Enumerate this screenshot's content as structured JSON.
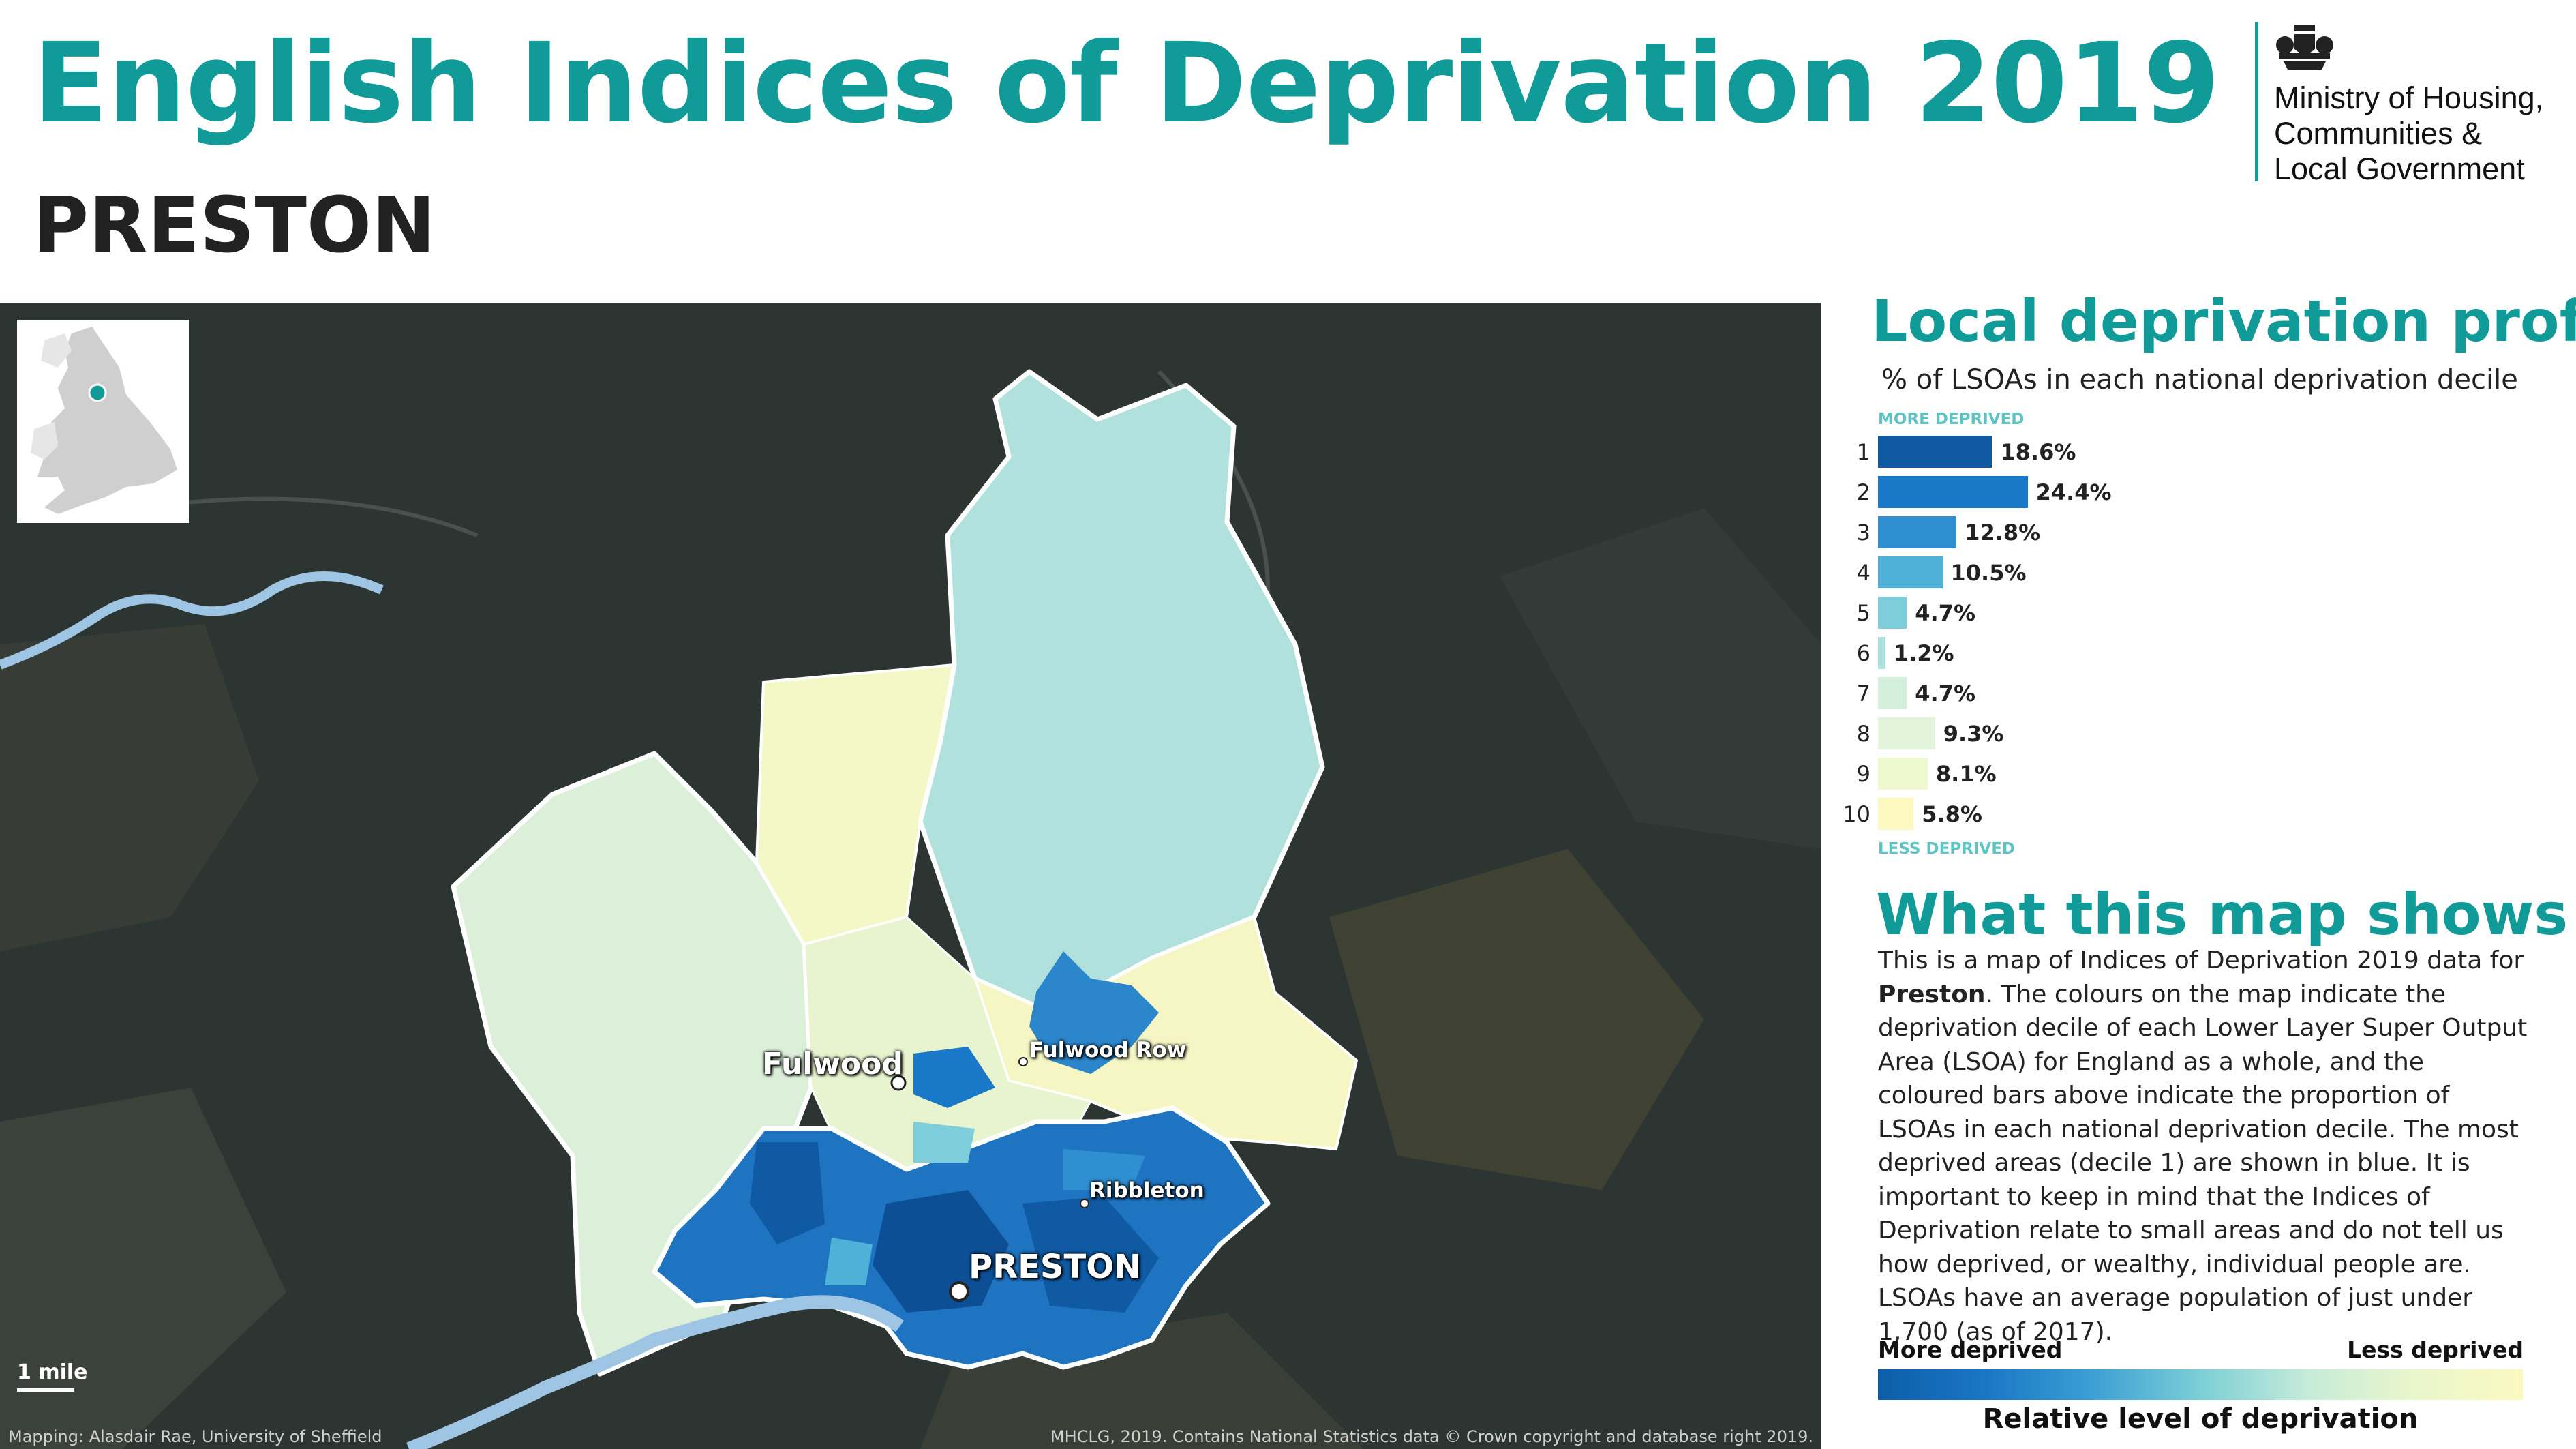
{
  "title": "English Indices of Deprivation 2019",
  "subtitle": "PRESTON",
  "logo": {
    "line1": "Ministry of Housing,",
    "line2": "Communities &",
    "line3": "Local Government",
    "icon": "royal-coat-of-arms-icon"
  },
  "map": {
    "places": [
      {
        "key": "fulwood",
        "label": "Fulwood"
      },
      {
        "key": "fulwood_row",
        "label": "Fulwood Row"
      },
      {
        "key": "ribbleton",
        "label": "Ribbleton"
      },
      {
        "key": "preston",
        "label": "PRESTON"
      }
    ],
    "scale_label": "1 mile",
    "credit_left": "Mapping: Alasdair Rae, University of Sheffield",
    "credit_right": "MHCLG, 2019. Contains National Statistics data © Crown copyright and database right 2019.",
    "background_color": "#2d3532",
    "inset_marker_color": "#109b98"
  },
  "profile": {
    "heading": "Local deprivation profile",
    "caption": "% of LSOAs in each national deprivation decile",
    "more_label": "MORE DEPRIVED",
    "less_label": "LESS DEPRIVED",
    "deciles": [
      {
        "decile": "1",
        "value": 18.6,
        "label": "18.6%",
        "color": "#0f5aa3"
      },
      {
        "decile": "2",
        "value": 24.4,
        "label": "24.4%",
        "color": "#1a78c8"
      },
      {
        "decile": "3",
        "value": 12.8,
        "label": "12.8%",
        "color": "#2f8fd0"
      },
      {
        "decile": "4",
        "value": 10.5,
        "label": "10.5%",
        "color": "#4fb1d8"
      },
      {
        "decile": "5",
        "value": 4.7,
        "label": "4.7%",
        "color": "#7dcddb"
      },
      {
        "decile": "6",
        "value": 1.2,
        "label": "1.2%",
        "color": "#abe1dc"
      },
      {
        "decile": "7",
        "value": 4.7,
        "label": "4.7%",
        "color": "#d3efdc"
      },
      {
        "decile": "8",
        "value": 9.3,
        "label": "9.3%",
        "color": "#e3f4dc"
      },
      {
        "decile": "9",
        "value": 8.1,
        "label": "8.1%",
        "color": "#eef8cf"
      },
      {
        "decile": "10",
        "value": 5.8,
        "label": "5.8%",
        "color": "#fcf8bf"
      }
    ]
  },
  "about": {
    "heading": "What this map shows",
    "text_1": "This is a map of Indices of Deprivation 2019 data for ",
    "area": "Preston",
    "text_2": ". The colours on the map indicate the deprivation decile of each Lower Layer Super Output Area (LSOA) for England as a whole, and the coloured bars above indicate the proportion of LSOAs in each national deprivation decile. The most deprived areas (decile 1) are shown in blue. It is important to keep in mind that the Indices of Deprivation relate to small areas and do not tell us how deprived, or wealthy, individual people are. LSOAs have an average population of just under 1,700 (as of 2017)."
  },
  "legend": {
    "more": "More deprived",
    "less": "Less deprived",
    "title": "Relative level of deprivation"
  }
}
